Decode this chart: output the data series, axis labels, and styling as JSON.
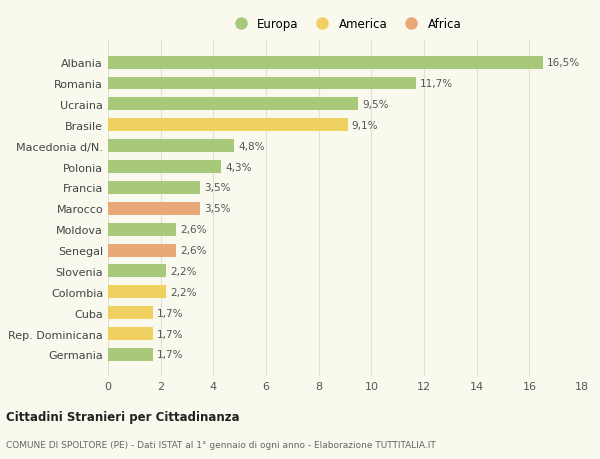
{
  "categories": [
    "Albania",
    "Romania",
    "Ucraina",
    "Brasile",
    "Macedonia d/N.",
    "Polonia",
    "Francia",
    "Marocco",
    "Moldova",
    "Senegal",
    "Slovenia",
    "Colombia",
    "Cuba",
    "Rep. Dominicana",
    "Germania"
  ],
  "values": [
    16.5,
    11.7,
    9.5,
    9.1,
    4.8,
    4.3,
    3.5,
    3.5,
    2.6,
    2.6,
    2.2,
    2.2,
    1.7,
    1.7,
    1.7
  ],
  "labels": [
    "16,5%",
    "11,7%",
    "9,5%",
    "9,1%",
    "4,8%",
    "4,3%",
    "3,5%",
    "3,5%",
    "2,6%",
    "2,6%",
    "2,2%",
    "2,2%",
    "1,7%",
    "1,7%",
    "1,7%"
  ],
  "continent": [
    "Europa",
    "Europa",
    "Europa",
    "America",
    "Europa",
    "Europa",
    "Europa",
    "Africa",
    "Europa",
    "Africa",
    "Europa",
    "America",
    "America",
    "America",
    "Europa"
  ],
  "colors": {
    "Europa": "#a8c87a",
    "America": "#f0d060",
    "Africa": "#e8a878"
  },
  "title_bold": "Cittadini Stranieri per Cittadinanza",
  "subtitle": "COMUNE DI SPOLTORE (PE) - Dati ISTAT al 1° gennaio di ogni anno - Elaborazione TUTTITALIA.IT",
  "xlim": [
    0,
    18
  ],
  "xticks": [
    0,
    2,
    4,
    6,
    8,
    10,
    12,
    14,
    16,
    18
  ],
  "background_color": "#f9f9ee",
  "grid_color": "#e0e0d0"
}
